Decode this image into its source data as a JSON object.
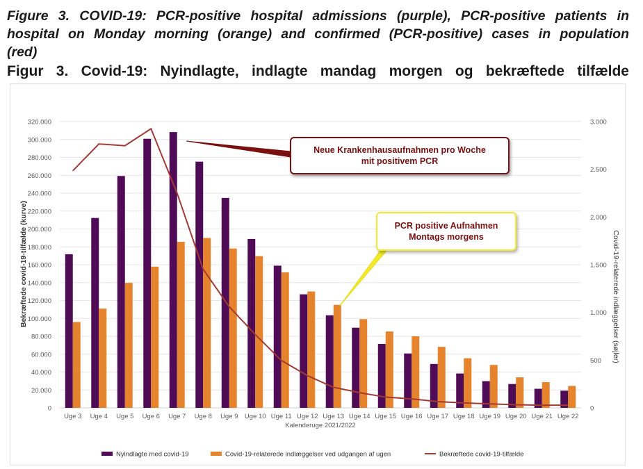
{
  "captions": {
    "english_line1": "Figure 3. COVID-19: PCR-positive hospital admissions (purple), PCR-positive patients in",
    "english_line2": "hospital on Monday morning (orange) and confirmed (PCR-positive) cases in population",
    "english_line3": "(red)",
    "danish": "Figur 3. Covid-19: Nyindlagte, indlagte mandag morgen og bekræftede tilfælde"
  },
  "annotations": {
    "red_callout_line1": "Neue Krankenhausaufnahmen pro Woche",
    "red_callout_line2": "mit positivem PCR",
    "yellow_callout_line1": "PCR positive Aufnahmen",
    "yellow_callout_line2": "Montags morgens"
  },
  "colors": {
    "purple": "#4f0b55",
    "orange": "#e6842e",
    "red_line": "#a33a32",
    "grid": "#e6e6e6",
    "callout_red": "#7a1010",
    "callout_yellow": "#f2ea2a"
  },
  "chart_data": {
    "type": "bar",
    "title": "",
    "xlabel": "Kalenderuge 2021/2022",
    "ylabel_left": "Bekræftede covid-19-tilfælde (kurve)",
    "ylabel_right": "Covid-19-relaterede indlæggelser (søjler)",
    "categories": [
      "Uge 3",
      "Uge 4",
      "Uge 5",
      "Uge 6",
      "Uge 7",
      "Uge 8",
      "Uge 9",
      "Uge 10",
      "Uge 11",
      "Uge 12",
      "Uge 13",
      "Uge 14",
      "Uge 15",
      "Uge 16",
      "Uge 17",
      "Uge 18",
      "Uge 19",
      "Uge 20",
      "Uge 21",
      "Uge 22"
    ],
    "ylim_left": [
      0,
      320000
    ],
    "ylim_right": [
      0,
      3000
    ],
    "yticks_left": [
      "0",
      "20.000",
      "40.000",
      "60.000",
      "80.000",
      "100.000",
      "120.000",
      "140.000",
      "160.000",
      "180.000",
      "200.000",
      "220.000",
      "240.000",
      "260.000",
      "280.000",
      "300.000",
      "320.000"
    ],
    "yticks_right": [
      "0",
      "500",
      "1.000",
      "1.500",
      "2.000",
      "2.500",
      "3.000"
    ],
    "grid": true,
    "legend_position": "bottom",
    "series": [
      {
        "name": "Nyindlagte med covid-19",
        "type": "bar",
        "axis": "right",
        "values": [
          1610,
          1990,
          2430,
          2820,
          2890,
          2580,
          2200,
          1770,
          1490,
          1190,
          970,
          840,
          670,
          570,
          460,
          360,
          280,
          250,
          200,
          180
        ]
      },
      {
        "name": "Covid-19-relaterede indlæggelser ved udgangen af ugen",
        "type": "bar",
        "axis": "right",
        "values": [
          900,
          1040,
          1310,
          1480,
          1740,
          1780,
          1670,
          1590,
          1420,
          1220,
          1080,
          930,
          800,
          750,
          640,
          520,
          450,
          320,
          270,
          230
        ]
      },
      {
        "name": "Bekræftede covid-19-tilfælde",
        "type": "line",
        "axis": "left",
        "values": [
          265000,
          295000,
          293000,
          312000,
          240000,
          155000,
          113000,
          82000,
          53000,
          36000,
          23000,
          17000,
          12000,
          10000,
          7000,
          5500,
          4500,
          3500,
          3000,
          3000
        ]
      }
    ]
  }
}
